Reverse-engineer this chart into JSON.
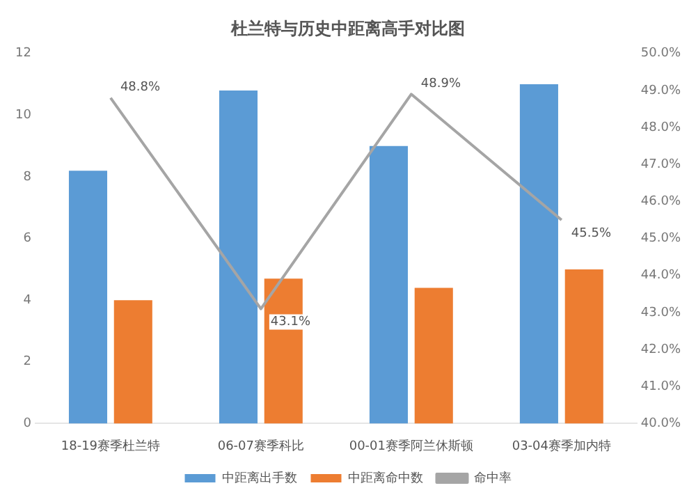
{
  "chart_data": {
    "type": "bar",
    "title": "杜兰特与历史中距离高手对比图",
    "categories": [
      "18-19赛季杜兰特",
      "06-07赛季科比",
      "00-01赛季阿兰休斯顿",
      "03-04赛季加内特"
    ],
    "series": [
      {
        "name": "中距离出手数",
        "color": "#5b9bd5",
        "values": [
          8.2,
          10.8,
          9.0,
          11.0
        ]
      },
      {
        "name": "中距离命中数",
        "color": "#ed7d31",
        "values": [
          4.0,
          4.7,
          4.4,
          5.0
        ]
      },
      {
        "name": "命中率",
        "type": "line",
        "axis": "y2",
        "color": "#a5a5a5",
        "values": [
          48.8,
          43.1,
          48.9,
          45.5
        ],
        "value_labels": [
          "48.8%",
          "43.1%",
          "48.9%",
          "45.5%"
        ]
      }
    ],
    "ylim": [
      0,
      12
    ],
    "yticks": [
      0,
      2,
      4,
      6,
      8,
      10,
      12
    ],
    "y2lim": [
      40,
      50
    ],
    "y2ticks": [
      {
        "value": 40,
        "label": "40.0%"
      },
      {
        "value": 41,
        "label": "41.0%"
      },
      {
        "value": 42,
        "label": "42.0%"
      },
      {
        "value": 43,
        "label": "43.0%"
      },
      {
        "value": 44,
        "label": "44.0%"
      },
      {
        "value": 45,
        "label": "45.0%"
      },
      {
        "value": 46,
        "label": "46.0%"
      },
      {
        "value": 47,
        "label": "47.0%"
      },
      {
        "value": 48,
        "label": "48.0%"
      },
      {
        "value": 49,
        "label": "49.0%"
      },
      {
        "value": 50,
        "label": "50.0%"
      }
    ],
    "legend": "bottom",
    "marker": "none"
  }
}
